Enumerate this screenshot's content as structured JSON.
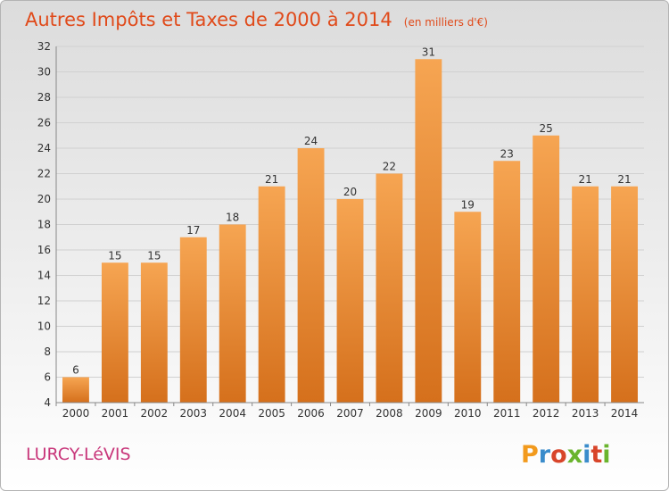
{
  "title": "Autres Impôts et Taxes de 2000 à 2014",
  "unit": "(en milliers d'€)",
  "commune": "LURCY-LéVIS",
  "logo": {
    "letters": [
      "P",
      "r",
      "o",
      "x",
      "i",
      "t",
      "i"
    ],
    "colors": [
      "#f29a1d",
      "#3a8ccb",
      "#d8452a",
      "#6ab42d",
      "#3a8ccb",
      "#d8452a",
      "#6ab42d"
    ]
  },
  "colors": {
    "bar_top": "#f6a552",
    "bar_bottom": "#d5701c",
    "accent": "#e04a1a"
  },
  "chart_data": {
    "type": "bar",
    "title": "Autres Impôts et Taxes de 2000 à 2014",
    "unit": "(en milliers d'€)",
    "categories": [
      "2000",
      "2001",
      "2002",
      "2003",
      "2004",
      "2005",
      "2006",
      "2007",
      "2008",
      "2009",
      "2010",
      "2011",
      "2012",
      "2013",
      "2014"
    ],
    "values": [
      6,
      15,
      15,
      17,
      18,
      21,
      24,
      20,
      22,
      31,
      19,
      23,
      25,
      21,
      21
    ],
    "ylim": [
      4,
      32
    ],
    "yticks": [
      4,
      6,
      8,
      10,
      12,
      14,
      16,
      18,
      20,
      22,
      24,
      26,
      28,
      30,
      32
    ],
    "grid": true,
    "data_labels": true,
    "legend": "none"
  }
}
